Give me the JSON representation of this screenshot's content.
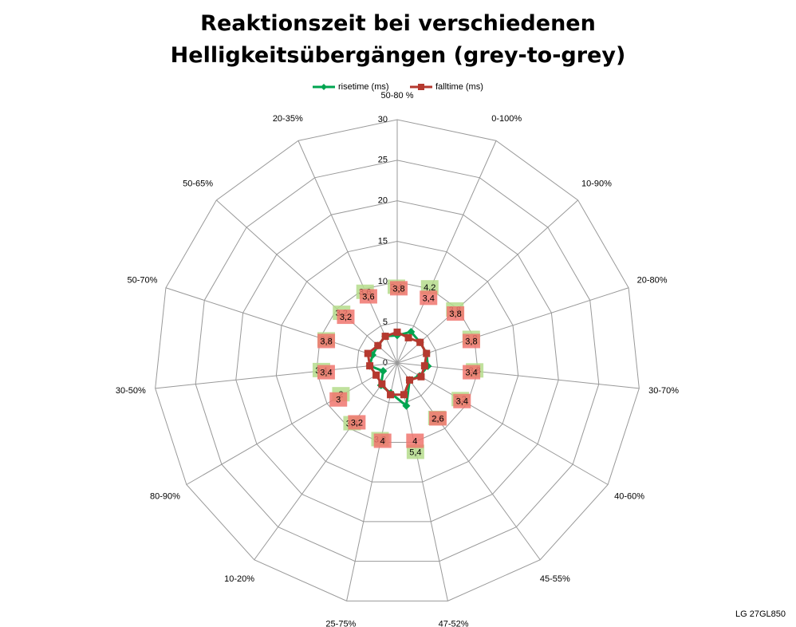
{
  "chart_data": {
    "type": "radar",
    "title": "Reaktionszeit bei verschiedenen Helligkeitsübergängen (grey-to-grey)",
    "footnote": "LG 27GL850",
    "categories": [
      "50-80 %",
      "0-100%",
      "10-90%",
      "20-80%",
      "30-70%",
      "40-60%",
      "45-55%",
      "47-52%",
      "25-75%",
      "10-20%",
      "80-90%",
      "30-50%",
      "50-70%",
      "50-65%",
      "20-35%"
    ],
    "series": [
      {
        "name": "risetime (ms)",
        "color": "#00a550",
        "label_color": "#b5dc8c",
        "marker": "diamond",
        "values": [
          3.4,
          4.2,
          3.8,
          3.8,
          3.8,
          3.2,
          2.6,
          5.4,
          3.8,
          3.4,
          2,
          3.4,
          3.2,
          3.2,
          3.6
        ],
        "value_labels": [
          "3,4",
          "4,2",
          "3,8",
          "3,8",
          "3,8",
          "3,2",
          "2,6",
          "5,4",
          "3,8",
          "3,4",
          "2",
          "3,4",
          "3,2",
          "3,2",
          "3,6"
        ]
      },
      {
        "name": "falltime (ms)",
        "color": "#b5392f",
        "label_color": "#f0766e",
        "marker": "square",
        "values": [
          3.8,
          3.4,
          3.8,
          3.8,
          3.4,
          3.4,
          2.6,
          4,
          4,
          3.2,
          3,
          3.4,
          3.8,
          3.2,
          3.6
        ],
        "value_labels": [
          "3,8",
          "3,4",
          "3,8",
          "3,8",
          "3,4",
          "3,4",
          "2,6",
          "4",
          "4",
          "3,2",
          "3",
          "3,4",
          "3,8",
          "3,2",
          "3,6"
        ]
      }
    ],
    "ylim": [
      0,
      30
    ],
    "yticks": [
      0,
      5,
      10,
      15,
      20,
      25,
      30
    ],
    "grid": true,
    "legend": "top"
  }
}
